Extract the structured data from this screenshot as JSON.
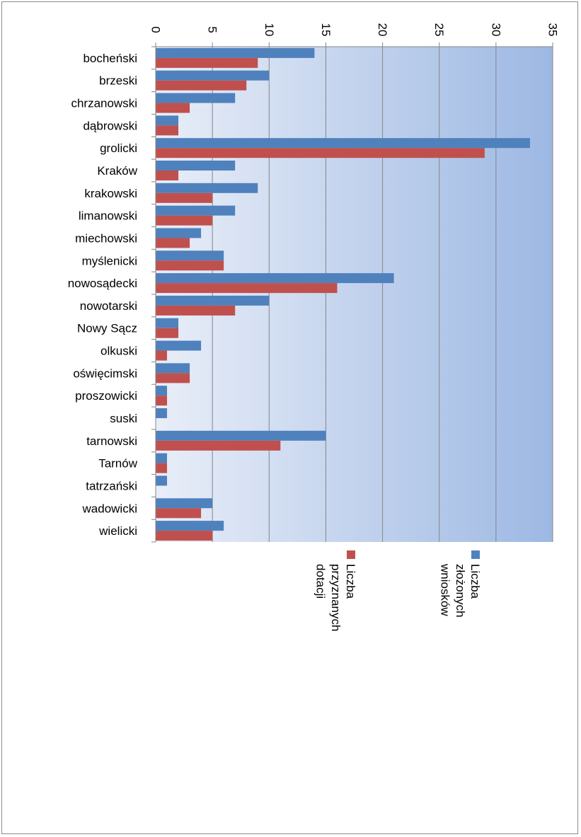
{
  "chart_data": {
    "type": "bar",
    "orientation": "horizontal",
    "categories": [
      "bocheński",
      "brzeski",
      "chrzanowski",
      "dąbrowski",
      "grolicki",
      "Kraków",
      "krakowski",
      "limanowski",
      "miechowski",
      "myślenicki",
      "nowosądecki",
      "nowotarski",
      "Nowy Sącz",
      "olkuski",
      "oświęcimski",
      "proszowicki",
      "suski",
      "tarnowski",
      "Tarnów",
      "tatrzański",
      "wadowicki",
      "wielicki"
    ],
    "series": [
      {
        "name": "Liczba złożonych wniosków",
        "color": "#4f81bd",
        "values": [
          14,
          10,
          7,
          2,
          33,
          7,
          9,
          7,
          4,
          6,
          21,
          10,
          2,
          4,
          3,
          1,
          1,
          15,
          1,
          1,
          5,
          6
        ]
      },
      {
        "name": "Liczba przyznanych dotacji",
        "color": "#c0504d",
        "values": [
          9,
          8,
          3,
          2,
          29,
          2,
          5,
          5,
          3,
          6,
          16,
          7,
          2,
          1,
          3,
          1,
          0,
          11,
          1,
          0,
          4,
          5
        ]
      }
    ],
    "xlim": [
      0,
      35
    ],
    "ticks": [
      0,
      5,
      10,
      15,
      20,
      25,
      30,
      35
    ],
    "grid": true,
    "legend_position": "bottom",
    "rotated_page": true,
    "plot_background": [
      "#e9eef8",
      "#9db8e3"
    ]
  }
}
